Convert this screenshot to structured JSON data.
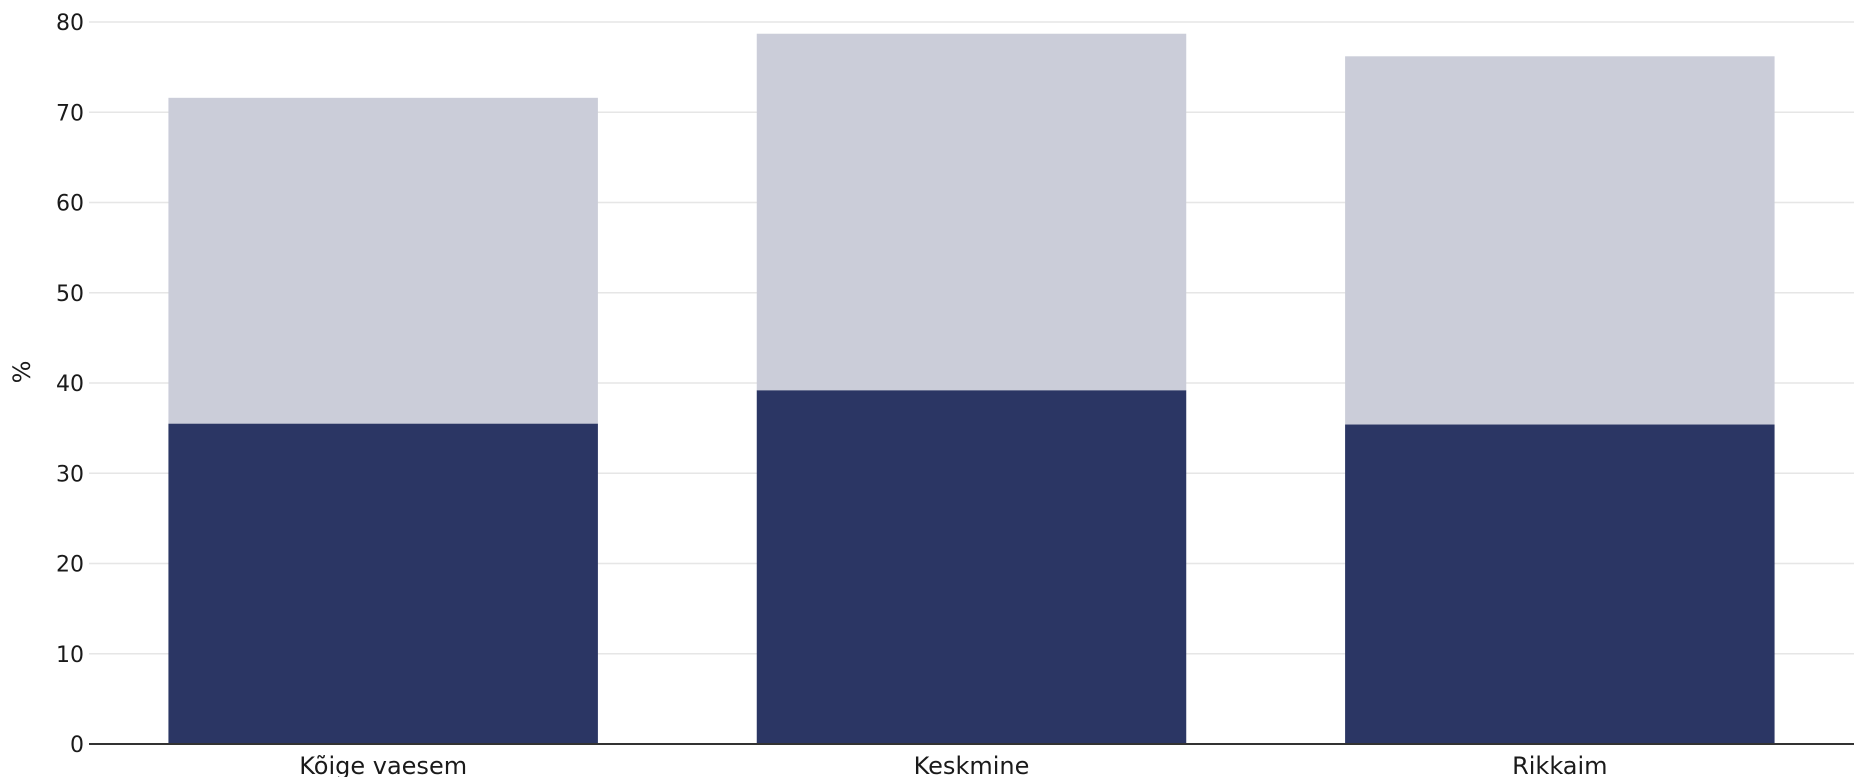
{
  "chart_data": {
    "type": "bar",
    "stacked": true,
    "categories": [
      "Kõige vaesem",
      "Keskmine",
      "Rikkaim"
    ],
    "series": [
      {
        "values": [
          35.5,
          39.2,
          35.4
        ],
        "color": "#2b3664"
      },
      {
        "values": [
          36.1,
          39.5,
          40.8
        ],
        "color": "#cbcdd9"
      }
    ],
    "ylabel": "%",
    "ylim": [
      0,
      80
    ],
    "yticks": [
      0,
      10,
      20,
      30,
      40,
      50,
      60,
      70,
      80
    ],
    "grid": true,
    "legend": "none"
  }
}
